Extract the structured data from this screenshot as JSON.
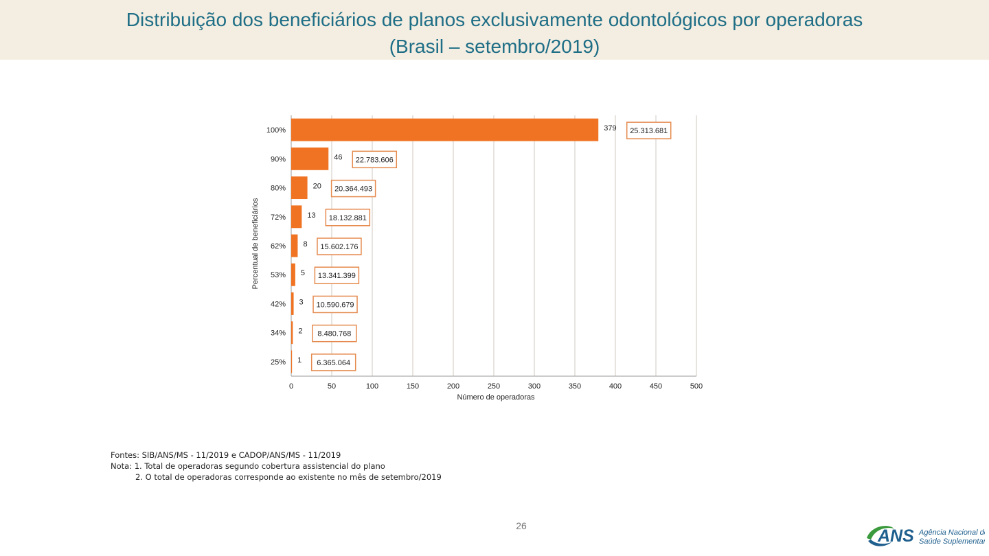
{
  "slide": {
    "title_line1": "Distribuição dos beneficiários de planos exclusivamente odontológicos por operadoras",
    "title_line2": "(Brasil – setembro/2019)",
    "page_number": "26",
    "title_color": "#1e6e86",
    "title_background": "#f4ede1"
  },
  "notes": {
    "source": "Fontes: SIB/ANS/MS - 11/2019 e CADOP/ANS/MS - 11/2019",
    "note1": "Nota: 1. Total de operadoras segundo cobertura assistencial do plano",
    "note2": "2. O total de operadoras corresponde ao existente no mês de setembro/2019"
  },
  "logo": {
    "wordmark": "ANS",
    "line1": "Agência Nacional de",
    "line2": "Saúde Suplementar",
    "green": "#3a9a3c",
    "blue": "#1f5f8e"
  },
  "chart_data": {
    "type": "bar",
    "orientation": "horizontal",
    "xlabel": "Número de operadoras",
    "ylabel": "Percentual de beneficiários",
    "xlim": [
      0,
      500
    ],
    "x_ticks": [
      0,
      50,
      100,
      150,
      200,
      250,
      300,
      350,
      400,
      450,
      500
    ],
    "grid": "vertical",
    "bar_color": "#f07323",
    "box_color": "#e58a4e",
    "categories": [
      "100%",
      "90%",
      "80%",
      "72%",
      "62%",
      "53%",
      "42%",
      "34%",
      "25%"
    ],
    "values": [
      379,
      46,
      20,
      13,
      8,
      5,
      3,
      2,
      1
    ],
    "beneficiaries": [
      "25.313.681",
      "22.783.606",
      "20.364.493",
      "18.132.881",
      "15.602.176",
      "13.341.399",
      "10.590.679",
      "8.480.768",
      "6.365.064"
    ]
  }
}
